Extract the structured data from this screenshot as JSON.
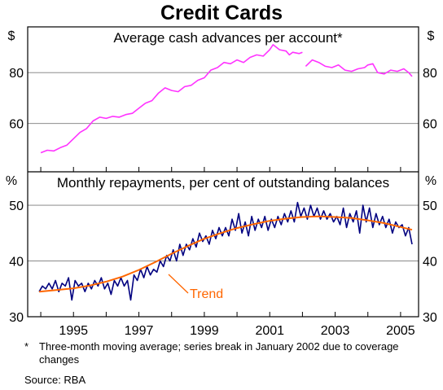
{
  "title": "Credit Cards",
  "footnote": {
    "marker": "*",
    "text": "Three-month moving average; series break in January 2002 due to coverage changes"
  },
  "source": "Source: RBA",
  "chart_data": [
    {
      "type": "line",
      "title": "Average cash advances per account*",
      "unit_label": "$",
      "x_ticks": [
        "1995",
        "1997",
        "1999",
        "2001",
        "2003",
        "2005"
      ],
      "y_ticks": [
        "60",
        "80"
      ],
      "xlim": [
        1993.6,
        2005.55
      ],
      "ylim": [
        41,
        98
      ],
      "grid": true,
      "series": [
        {
          "color": "#ff33ff",
          "segments": [
            [
              [
                1994.0,
                48.5
              ],
              [
                1994.2,
                49.5
              ],
              [
                1994.4,
                49.2
              ],
              [
                1994.6,
                50.5
              ],
              [
                1994.8,
                51.5
              ],
              [
                1995.0,
                54
              ],
              [
                1995.2,
                56.5
              ],
              [
                1995.4,
                58
              ],
              [
                1995.6,
                61
              ],
              [
                1995.8,
                62.5
              ],
              [
                1996.0,
                62
              ],
              [
                1996.2,
                62.8
              ],
              [
                1996.4,
                62.5
              ],
              [
                1996.6,
                63.5
              ],
              [
                1996.8,
                64
              ],
              [
                1997.0,
                66
              ],
              [
                1997.2,
                68
              ],
              [
                1997.4,
                69
              ],
              [
                1997.6,
                72
              ],
              [
                1997.8,
                74
              ],
              [
                1998.0,
                73
              ],
              [
                1998.2,
                72.5
              ],
              [
                1998.4,
                74.5
              ],
              [
                1998.6,
                75
              ],
              [
                1998.8,
                77
              ],
              [
                1999.0,
                78
              ],
              [
                1999.2,
                81
              ],
              [
                1999.4,
                82
              ],
              [
                1999.6,
                84
              ],
              [
                1999.8,
                83.5
              ],
              [
                2000.0,
                85
              ],
              [
                2000.2,
                84
              ],
              [
                2000.4,
                86
              ],
              [
                2000.6,
                87
              ],
              [
                2000.8,
                86.5
              ],
              [
                2001.0,
                89
              ],
              [
                2001.1,
                91
              ],
              [
                2001.3,
                89
              ],
              [
                2001.5,
                88.5
              ],
              [
                2001.6,
                87
              ],
              [
                2001.7,
                88
              ],
              [
                2001.9,
                87.5
              ],
              [
                2002.0,
                88
              ]
            ],
            [
              [
                2002.1,
                82.5
              ],
              [
                2002.3,
                85
              ],
              [
                2002.5,
                84
              ],
              [
                2002.7,
                82.5
              ],
              [
                2002.9,
                82
              ],
              [
                2003.1,
                83
              ],
              [
                2003.3,
                81
              ],
              [
                2003.5,
                80.5
              ],
              [
                2003.7,
                81.5
              ],
              [
                2003.9,
                82
              ],
              [
                2004.0,
                83
              ],
              [
                2004.15,
                83.5
              ],
              [
                2004.3,
                80
              ],
              [
                2004.5,
                79.5
              ],
              [
                2004.7,
                81
              ],
              [
                2004.9,
                80.5
              ],
              [
                2005.1,
                81.5
              ],
              [
                2005.25,
                80
              ],
              [
                2005.35,
                78.5
              ]
            ]
          ]
        }
      ]
    },
    {
      "type": "line",
      "title": "Monthly repayments, per cent of outstanding balances",
      "unit_label": "%",
      "x_ticks": [
        "1995",
        "1997",
        "1999",
        "2001",
        "2003",
        "2005"
      ],
      "y_ticks": [
        "30",
        "40",
        "50"
      ],
      "xlim": [
        1993.6,
        2005.55
      ],
      "ylim": [
        30,
        56
      ],
      "grid": true,
      "annotations": [
        {
          "text": "Trend"
        }
      ],
      "series": [
        {
          "color": "#000080",
          "points": [
            [
              1993.95,
              34.5
            ],
            [
              1994.05,
              35.5
            ],
            [
              1994.15,
              35
            ],
            [
              1994.25,
              36
            ],
            [
              1994.35,
              35
            ],
            [
              1994.45,
              36.5
            ],
            [
              1994.55,
              34.5
            ],
            [
              1994.65,
              36
            ],
            [
              1994.75,
              35.5
            ],
            [
              1994.85,
              37
            ],
            [
              1994.95,
              33
            ],
            [
              1995.05,
              36.5
            ],
            [
              1995.15,
              35.5
            ],
            [
              1995.25,
              36
            ],
            [
              1995.35,
              34.5
            ],
            [
              1995.45,
              36
            ],
            [
              1995.55,
              35
            ],
            [
              1995.65,
              36.5
            ],
            [
              1995.75,
              35.5
            ],
            [
              1995.85,
              37
            ],
            [
              1995.95,
              35
            ],
            [
              1996.05,
              36
            ],
            [
              1996.15,
              34
            ],
            [
              1996.25,
              36.5
            ],
            [
              1996.35,
              35.5
            ],
            [
              1996.45,
              37
            ],
            [
              1996.55,
              35.5
            ],
            [
              1996.65,
              36.5
            ],
            [
              1996.75,
              33
            ],
            [
              1996.85,
              37.5
            ],
            [
              1996.95,
              36.5
            ],
            [
              1997.05,
              38.5
            ],
            [
              1997.15,
              37
            ],
            [
              1997.25,
              39
            ],
            [
              1997.35,
              37.5
            ],
            [
              1997.45,
              38.5
            ],
            [
              1997.55,
              38
            ],
            [
              1997.65,
              40
            ],
            [
              1997.75,
              39
            ],
            [
              1997.85,
              41
            ],
            [
              1997.95,
              40
            ],
            [
              1998.05,
              42
            ],
            [
              1998.15,
              40
            ],
            [
              1998.25,
              43
            ],
            [
              1998.35,
              41
            ],
            [
              1998.45,
              43
            ],
            [
              1998.55,
              42
            ],
            [
              1998.65,
              44
            ],
            [
              1998.75,
              42.5
            ],
            [
              1998.85,
              45
            ],
            [
              1998.95,
              43.5
            ],
            [
              1999.05,
              44.5
            ],
            [
              1999.15,
              43
            ],
            [
              1999.25,
              45.5
            ],
            [
              1999.35,
              44
            ],
            [
              1999.45,
              46
            ],
            [
              1999.55,
              44.5
            ],
            [
              1999.65,
              46
            ],
            [
              1999.75,
              44.5
            ],
            [
              1999.85,
              47.5
            ],
            [
              1999.95,
              45.5
            ],
            [
              2000.05,
              48.5
            ],
            [
              2000.15,
              45
            ],
            [
              2000.25,
              47
            ],
            [
              2000.35,
              44.5
            ],
            [
              2000.45,
              48
            ],
            [
              2000.55,
              45.5
            ],
            [
              2000.65,
              47.5
            ],
            [
              2000.75,
              46
            ],
            [
              2000.85,
              48
            ],
            [
              2000.95,
              45.5
            ],
            [
              2001.05,
              47.5
            ],
            [
              2001.15,
              46
            ],
            [
              2001.25,
              48
            ],
            [
              2001.35,
              46.5
            ],
            [
              2001.45,
              48.5
            ],
            [
              2001.55,
              47
            ],
            [
              2001.65,
              49
            ],
            [
              2001.75,
              47
            ],
            [
              2001.85,
              50.5
            ],
            [
              2001.95,
              48
            ],
            [
              2002.05,
              49.5
            ],
            [
              2002.15,
              47.5
            ],
            [
              2002.25,
              50
            ],
            [
              2002.35,
              48
            ],
            [
              2002.45,
              49.5
            ],
            [
              2002.55,
              47.5
            ],
            [
              2002.65,
              49
            ],
            [
              2002.75,
              47.5
            ],
            [
              2002.85,
              48.5
            ],
            [
              2002.95,
              47
            ],
            [
              2003.05,
              48
            ],
            [
              2003.15,
              46.5
            ],
            [
              2003.25,
              49.5
            ],
            [
              2003.35,
              46
            ],
            [
              2003.45,
              48.5
            ],
            [
              2003.55,
              47
            ],
            [
              2003.65,
              49
            ],
            [
              2003.75,
              45
            ],
            [
              2003.85,
              50
            ],
            [
              2003.95,
              47
            ],
            [
              2004.05,
              49.5
            ],
            [
              2004.15,
              46
            ],
            [
              2004.25,
              48.5
            ],
            [
              2004.35,
              46.5
            ],
            [
              2004.45,
              48
            ],
            [
              2004.55,
              46
            ],
            [
              2004.65,
              47.5
            ],
            [
              2004.75,
              45
            ],
            [
              2004.85,
              47
            ],
            [
              2004.95,
              46
            ],
            [
              2005.05,
              46.5
            ],
            [
              2005.15,
              44.5
            ],
            [
              2005.25,
              46
            ],
            [
              2005.35,
              43
            ]
          ]
        },
        {
          "name": "Trend",
          "color": "#ff6600",
          "points": [
            [
              1993.95,
              34.5
            ],
            [
              1994.5,
              34.8
            ],
            [
              1995.0,
              35.1
            ],
            [
              1995.5,
              35.6
            ],
            [
              1996.0,
              36.3
            ],
            [
              1996.5,
              37.2
            ],
            [
              1997.0,
              38.4
            ],
            [
              1997.5,
              39.8
            ],
            [
              1998.0,
              41.3
            ],
            [
              1998.5,
              42.7
            ],
            [
              1999.0,
              44.0
            ],
            [
              1999.5,
              45.0
            ],
            [
              2000.0,
              45.9
            ],
            [
              2000.5,
              46.6
            ],
            [
              2001.0,
              47.2
            ],
            [
              2001.5,
              47.6
            ],
            [
              2002.0,
              47.9
            ],
            [
              2002.5,
              48.0
            ],
            [
              2003.0,
              47.9
            ],
            [
              2003.5,
              47.7
            ],
            [
              2004.0,
              47.3
            ],
            [
              2004.5,
              46.8
            ],
            [
              2005.0,
              46.1
            ],
            [
              2005.35,
              45.6
            ]
          ]
        }
      ]
    }
  ]
}
